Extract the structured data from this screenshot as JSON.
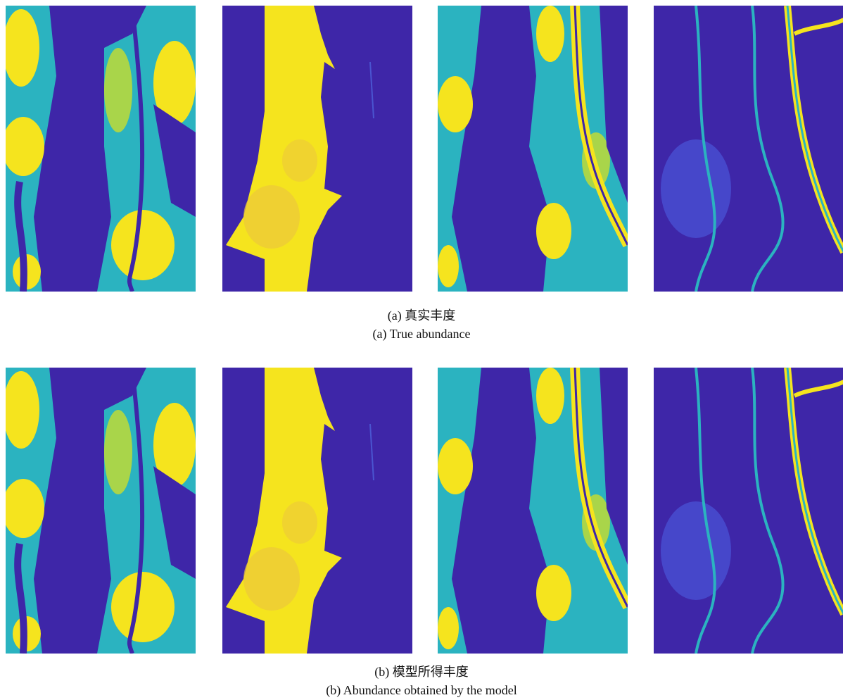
{
  "figure": {
    "rows": [
      {
        "caption_zh": "(a) 真实丰度",
        "caption_en": "(a) True abundance"
      },
      {
        "caption_zh": "(b) 模型所得丰度",
        "caption_en": "(b) Abundance obtained by the model"
      }
    ]
  }
}
